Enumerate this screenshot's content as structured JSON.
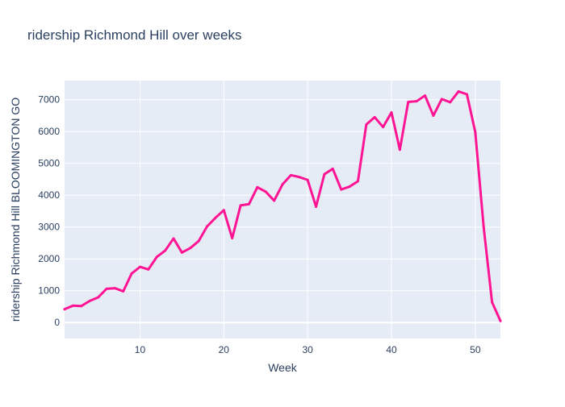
{
  "chart_data": {
    "type": "line",
    "title": "ridership Richmond Hill over weeks",
    "xlabel": "Week",
    "ylabel": "ridership Richmond Hill BLOOMINGTON GO",
    "xlim": [
      1,
      53
    ],
    "ylim": [
      -500,
      7600
    ],
    "xticks": [
      10,
      20,
      30,
      40,
      50
    ],
    "yticks": [
      0,
      1000,
      2000,
      3000,
      4000,
      5000,
      6000,
      7000
    ],
    "grid": true,
    "legend": "none",
    "colors": {
      "line": "#ff1493",
      "plot_bg": "#e5ecf6",
      "grid": "#ffffff",
      "text": "#2a3f5f"
    },
    "series": [
      {
        "x": [
          1,
          2,
          3,
          4,
          5,
          6,
          7,
          8,
          9,
          10,
          11,
          12,
          13,
          14,
          15,
          16,
          17,
          18,
          19,
          20,
          21,
          22,
          23,
          24,
          25,
          26,
          27,
          28,
          29,
          30,
          31,
          32,
          33,
          34,
          35,
          36,
          37,
          38,
          39,
          40,
          41,
          42,
          43,
          44,
          45,
          46,
          47,
          48,
          49,
          50,
          51,
          52,
          53
        ],
        "y": [
          420,
          530,
          520,
          680,
          790,
          1060,
          1080,
          980,
          1540,
          1750,
          1670,
          2060,
          2260,
          2640,
          2200,
          2340,
          2560,
          3020,
          3290,
          3530,
          2650,
          3680,
          3720,
          4250,
          4110,
          3830,
          4340,
          4630,
          4570,
          4480,
          3640,
          4660,
          4830,
          4180,
          4270,
          4440,
          6220,
          6450,
          6140,
          6600,
          5430,
          6930,
          6950,
          7130,
          6500,
          7020,
          6920,
          7260,
          7170,
          5980,
          3000,
          640,
          50
        ]
      }
    ]
  }
}
